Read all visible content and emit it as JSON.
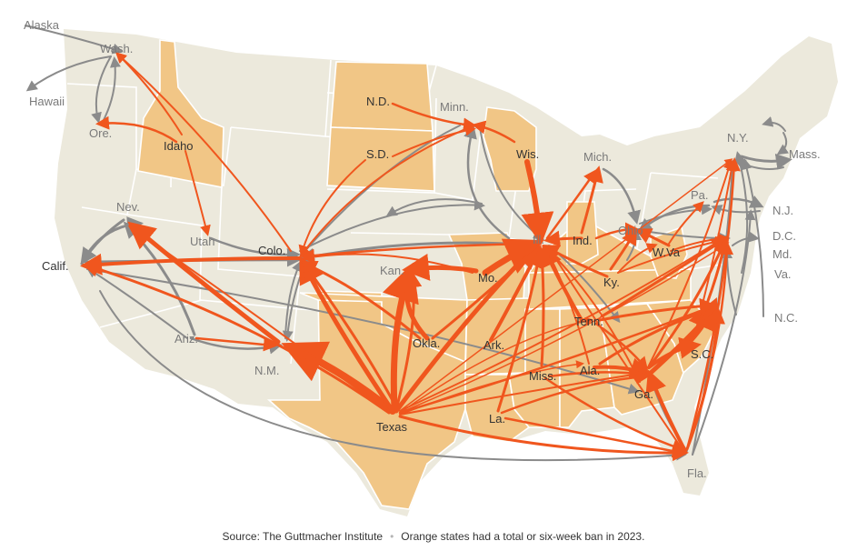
{
  "caption": {
    "source": "Source: The Guttmacher Institute",
    "note": "Orange states had a total or six-week ban in 2023."
  },
  "colors": {
    "land": "#ece9dc",
    "ban_state": "#f1c686",
    "border": "#ffffff",
    "outflow_ban": "#f0561e",
    "outflow_other": "#8b8b8b"
  },
  "labels": {
    "alaska": "Alaska",
    "hawaii": "Hawaii",
    "wash": "Wash.",
    "ore": "Ore.",
    "idaho": "Idaho",
    "calif": "Calif.",
    "nev": "Nev.",
    "utah": "Utah",
    "ariz": "Ariz.",
    "colo": "Colo.",
    "nm": "N.M.",
    "nd": "N.D.",
    "sd": "S.D.",
    "minn": "Minn.",
    "wis": "Wis.",
    "kan": "Kan.",
    "okla": "Okla.",
    "texas": "Texas",
    "mo": "Mo.",
    "ark": "Ark.",
    "la": "La.",
    "miss": "Miss.",
    "ala": "Ala.",
    "tenn": "Tenn.",
    "ky": "Ky.",
    "ga": "Ga.",
    "fla": "Fla.",
    "sc": "S.C.",
    "nc": "N.C.",
    "va": "Va.",
    "wva": "W.Va",
    "md": "Md.",
    "dc": "D.C.",
    "nj": "N.J.",
    "pa": "Pa.",
    "ny": "N.Y.",
    "mass": "Mass.",
    "mich": "Mich.",
    "ohio": "Ohio",
    "ind": "Ind.",
    "ill": "Ill."
  }
}
